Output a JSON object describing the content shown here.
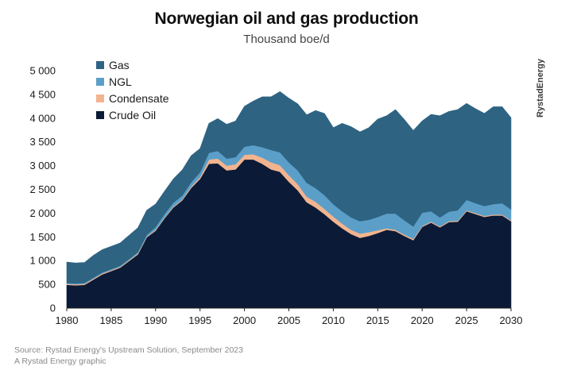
{
  "header": {
    "title": "Norwegian oil and gas production",
    "subtitle": "Thousand boe/d"
  },
  "brand": {
    "text": "RystadEnergy"
  },
  "footer": {
    "source": "Source: Rystad Energy's Upstream Solution, September 2023",
    "credit": "A Rystad Energy graphic"
  },
  "chart_data": {
    "type": "area",
    "stacked": true,
    "title": "Norwegian oil and gas production",
    "subtitle": "Thousand boe/d",
    "xlabel": "",
    "ylabel": "",
    "xlim": [
      1980,
      2030
    ],
    "ylim": [
      0,
      5000
    ],
    "grid": false,
    "legend": "top-left",
    "x_ticks": [
      "1980",
      "1985",
      "1990",
      "1995",
      "2000",
      "2005",
      "2010",
      "2015",
      "2020",
      "2025",
      "2030"
    ],
    "y_ticks": [
      "0",
      "500",
      "1 000",
      "1 500",
      "2 000",
      "2 500",
      "3 000",
      "3 500",
      "4 000",
      "4 500",
      "5 000"
    ],
    "x_tick_values": [
      1980,
      1985,
      1990,
      1995,
      2000,
      2005,
      2010,
      2015,
      2020,
      2025,
      2030
    ],
    "y_tick_values": [
      0,
      500,
      1000,
      1500,
      2000,
      2500,
      3000,
      3500,
      4000,
      4500,
      5000
    ],
    "x": [
      1980,
      1981,
      1982,
      1983,
      1984,
      1985,
      1986,
      1987,
      1988,
      1989,
      1990,
      1991,
      1992,
      1993,
      1994,
      1995,
      1996,
      1997,
      1998,
      1999,
      2000,
      2001,
      2002,
      2003,
      2004,
      2005,
      2006,
      2007,
      2008,
      2009,
      2010,
      2011,
      2012,
      2013,
      2014,
      2015,
      2016,
      2017,
      2018,
      2019,
      2020,
      2021,
      2022,
      2023,
      2024,
      2025,
      2026,
      2027,
      2028,
      2029,
      2030
    ],
    "series": [
      {
        "name": "Crude Oil",
        "color": "#0b1a36",
        "values": [
          490,
          480,
          490,
          600,
          710,
          780,
          850,
          990,
          1130,
          1490,
          1630,
          1890,
          2120,
          2270,
          2530,
          2720,
          3040,
          3050,
          2900,
          2920,
          3130,
          3130,
          3040,
          2920,
          2870,
          2660,
          2480,
          2230,
          2120,
          1980,
          1820,
          1680,
          1560,
          1480,
          1520,
          1580,
          1650,
          1620,
          1520,
          1430,
          1710,
          1800,
          1700,
          1810,
          1820,
          2040,
          1980,
          1920,
          1950,
          1950,
          1830
        ]
      },
      {
        "name": "Condensate",
        "color": "#f2b48f",
        "values": [
          20,
          20,
          20,
          20,
          20,
          20,
          20,
          20,
          20,
          20,
          20,
          20,
          20,
          20,
          30,
          40,
          90,
          100,
          100,
          110,
          100,
          110,
          130,
          150,
          140,
          140,
          130,
          120,
          120,
          110,
          110,
          100,
          90,
          90,
          80,
          60,
          30,
          30,
          30,
          30,
          20,
          20,
          20,
          20,
          20,
          20,
          20,
          20,
          20,
          20,
          20
        ]
      },
      {
        "name": "NGL",
        "color": "#5b9fc9",
        "values": [
          20,
          20,
          20,
          20,
          20,
          20,
          20,
          20,
          30,
          30,
          60,
          70,
          80,
          80,
          90,
          100,
          140,
          160,
          150,
          150,
          170,
          190,
          220,
          260,
          270,
          270,
          290,
          290,
          290,
          290,
          260,
          260,
          260,
          260,
          260,
          280,
          310,
          340,
          300,
          260,
          280,
          220,
          190,
          200,
          220,
          220,
          210,
          210,
          220,
          240,
          230
        ]
      },
      {
        "name": "Gas",
        "color": "#2e6382",
        "values": [
          440,
          430,
          430,
          470,
          480,
          480,
          480,
          500,
          510,
          520,
          480,
          480,
          500,
          540,
          560,
          500,
          620,
          680,
          720,
          760,
          850,
          930,
          1060,
          1120,
          1280,
          1350,
          1400,
          1430,
          1630,
          1720,
          1610,
          1850,
          1910,
          1880,
          1940,
          2060,
          2060,
          2190,
          2120,
          2020,
          1930,
          2040,
          2140,
          2110,
          2120,
          2030,
          1990,
          1950,
          2050,
          2030,
          1930
        ]
      }
    ],
    "legend_order": [
      "Gas",
      "NGL",
      "Condensate",
      "Crude Oil"
    ]
  }
}
